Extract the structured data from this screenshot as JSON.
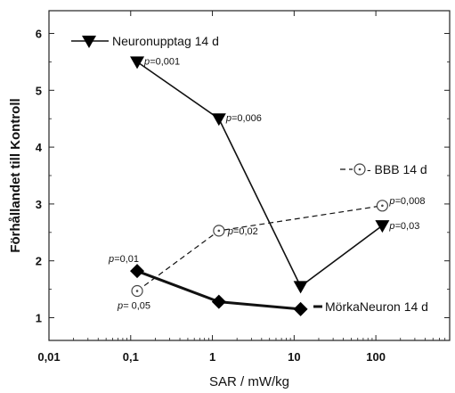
{
  "chart_data": {
    "type": "line",
    "xscale": "log",
    "xlim": [
      0.01,
      800
    ],
    "ylim": [
      0.6,
      6.4
    ],
    "xticks": [
      0.01,
      0.1,
      1,
      10,
      100
    ],
    "xtick_labels": [
      "0,01",
      "0,1",
      "1",
      "10",
      "100"
    ],
    "yticks": [
      1,
      2,
      3,
      4,
      5,
      6
    ],
    "ytick_labels": [
      "1",
      "2",
      "3",
      "4",
      "5",
      "6"
    ],
    "xlabel": "SAR / mW/kg",
    "ylabel": "Förhållandet till Kontroll",
    "series": [
      {
        "name": "Neuronupptag 14 d",
        "marker": "triangle-down",
        "line": "solid",
        "points": [
          {
            "x": 0.12,
            "y": 5.5,
            "label_p": "p=",
            "label_v": "0,001"
          },
          {
            "x": 1.2,
            "y": 4.5,
            "label_p": "p=",
            "label_v": "0,006"
          },
          {
            "x": 12,
            "y": 1.55,
            "label_p": "",
            "label_v": ""
          },
          {
            "x": 120,
            "y": 2.62,
            "label_p": "p=",
            "label_v": "0,03"
          }
        ]
      },
      {
        "name": "BBB 14 d",
        "marker": "circle-dot",
        "line": "dashed",
        "points": [
          {
            "x": 0.12,
            "y": 1.47,
            "label_p": "p=",
            "label_v": " 0,05"
          },
          {
            "x": 1.2,
            "y": 2.53,
            "label_p": "p=",
            "label_v": "0,02"
          },
          {
            "x": 120,
            "y": 2.97,
            "label_p": "p=",
            "label_v": "0,008"
          }
        ]
      },
      {
        "name": "MörkaNeuron 14 d",
        "marker": "diamond",
        "line": "thick",
        "points": [
          {
            "x": 0.12,
            "y": 1.82,
            "label_p": "p=",
            "label_v": "0,01"
          },
          {
            "x": 1.2,
            "y": 1.28,
            "label_p": "",
            "label_v": ""
          },
          {
            "x": 12,
            "y": 1.15,
            "label_p": "",
            "label_v": ""
          }
        ]
      }
    ]
  }
}
